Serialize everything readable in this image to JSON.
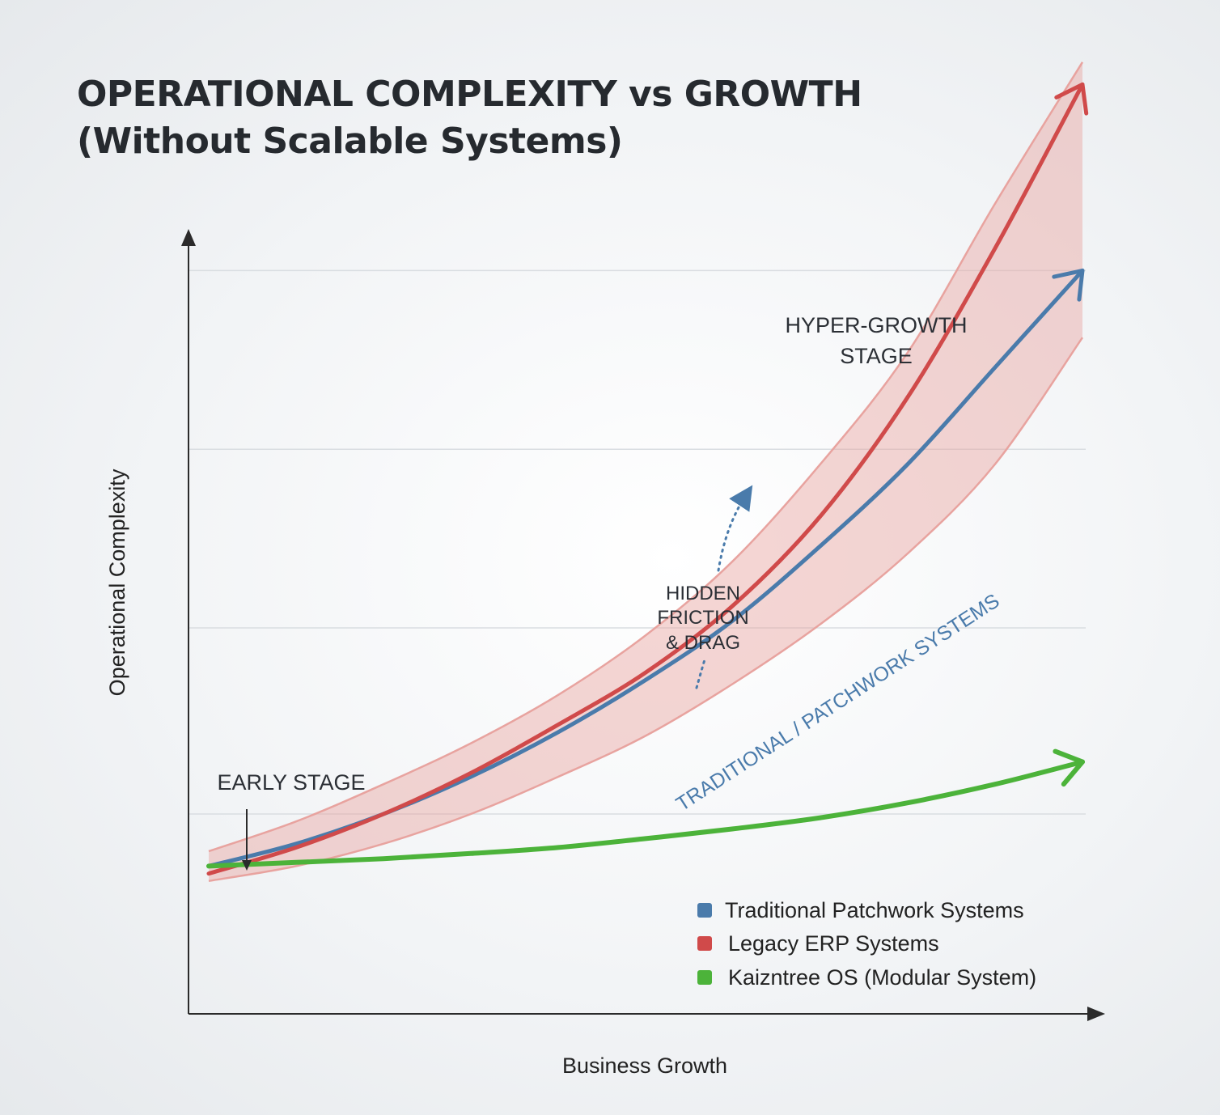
{
  "chart_data": {
    "type": "line",
    "title": "OPERATIONAL COMPLEXITY vs GROWTH",
    "subtitle": "(Without Scalable Systems)",
    "xlabel": "Business Growth",
    "ylabel": "Operational Complexity",
    "xlim": [
      0,
      100
    ],
    "ylim": [
      0,
      100
    ],
    "grid": true,
    "legend_position": "bottom-right",
    "series": [
      {
        "name": "Traditional Patchwork Systems",
        "color": "#4a7bab",
        "x": [
          0,
          10,
          20,
          30,
          40,
          50,
          60,
          70,
          80,
          90,
          100
        ],
        "y": [
          13,
          16,
          20,
          25,
          31,
          38,
          46,
          56,
          67,
          80,
          93
        ]
      },
      {
        "name": "Legacy ERP Systems",
        "color": "#d04a4a",
        "x": [
          0,
          10,
          20,
          30,
          40,
          50,
          60,
          70,
          80,
          90,
          100
        ],
        "y": [
          12,
          15.5,
          20,
          25.5,
          32,
          39,
          48,
          60,
          76,
          96,
          118
        ]
      },
      {
        "name": "Kaizntree OS (Modular System)",
        "color": "#4cb33a",
        "x": [
          0,
          10,
          20,
          30,
          40,
          50,
          60,
          70,
          80,
          90,
          100
        ],
        "y": [
          13,
          13.5,
          14,
          14.7,
          15.5,
          16.7,
          18,
          19.5,
          21.5,
          24,
          27
        ]
      }
    ],
    "band": {
      "color": "#e8a39f",
      "x": [
        0,
        10,
        20,
        30,
        40,
        50,
        60,
        70,
        80,
        90,
        100
      ],
      "y_low": [
        11,
        13,
        16,
        20,
        25,
        30.5,
        37.5,
        45.5,
        55,
        67,
        84
      ],
      "y_high": [
        15,
        19,
        24,
        29.5,
        36,
        44,
        54,
        67,
        82,
        102,
        121
      ]
    },
    "annotations": {
      "early_stage": "EARLY STAGE",
      "hidden_friction": [
        "HIDDEN",
        "FRICTION",
        "& DRAG"
      ],
      "hyper_growth": [
        "HYPER-GROWTH",
        "STAGE"
      ],
      "band_label": "TRADITIONAL / PATCHWORK SYSTEMS"
    },
    "colors": {
      "axis": "#2b2b2b",
      "grid": "#d9dde1",
      "annotation_text": "#2b2f35",
      "band_label": "#4a7bab",
      "friction_arrow": "#4a7bab"
    }
  }
}
